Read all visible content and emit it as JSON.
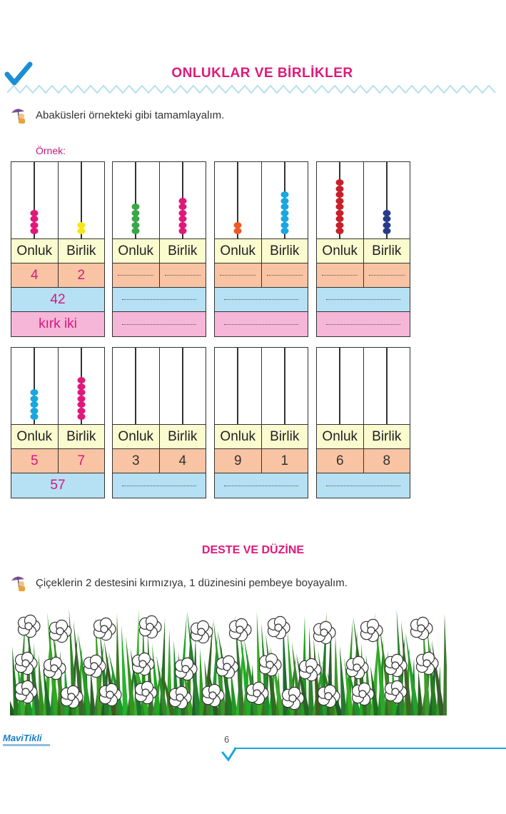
{
  "header": {
    "title": "ONLUKLAR VE BİRLİKLER"
  },
  "instruction1": "Abaküsleri örnekteki gibi tamamlayalım.",
  "example_label": "Örnek:",
  "labels": {
    "tens": "Onluk",
    "ones": "Birlik"
  },
  "abaci": [
    {
      "tens_beads": 4,
      "ones_beads": 2,
      "tens_color": "#e0187a",
      "ones_color": "#f5e51a",
      "tens_value": "4",
      "ones_value": "2",
      "number": "42",
      "words": "kırk iki"
    },
    {
      "tens_beads": 5,
      "ones_beads": 6,
      "tens_color": "#3aa64a",
      "ones_color": "#e0187a",
      "tens_value": "",
      "ones_value": "",
      "number": "",
      "words": ""
    },
    {
      "tens_beads": 2,
      "ones_beads": 7,
      "tens_color": "#f05a28",
      "ones_color": "#1aa6e0",
      "tens_value": "",
      "ones_value": "",
      "number": "",
      "words": ""
    },
    {
      "tens_beads": 9,
      "ones_beads": 4,
      "tens_color": "#c8202a",
      "ones_color": "#283a8a",
      "tens_value": "",
      "ones_value": "",
      "number": "",
      "words": ""
    },
    {
      "tens_beads": 5,
      "ones_beads": 7,
      "tens_color": "#1aa6e0",
      "ones_color": "#e0187a",
      "tens_value": "5",
      "ones_value": "7",
      "number": "57"
    },
    {
      "tens_beads": 0,
      "ones_beads": 0,
      "tens_color": "#333333",
      "ones_color": "#333333",
      "tens_value": "3",
      "ones_value": "4",
      "number": ""
    },
    {
      "tens_beads": 0,
      "ones_beads": 0,
      "tens_color": "#333333",
      "ones_color": "#333333",
      "tens_value": "9",
      "ones_value": "1",
      "number": ""
    },
    {
      "tens_beads": 0,
      "ones_beads": 0,
      "tens_color": "#333333",
      "ones_color": "#333333",
      "tens_value": "6",
      "ones_value": "8",
      "number": ""
    }
  ],
  "section2": {
    "title": "DESTE VE DÜZİNE",
    "instruction": "Çiçeklerin 2 destesini kırmızıya, 1 düzinesini pembeye boyayalım."
  },
  "footer": {
    "logo": "MaviTikli",
    "page_number": "6"
  },
  "colors": {
    "accent": "#e0187a",
    "brand_blue": "#1a7fc4"
  }
}
